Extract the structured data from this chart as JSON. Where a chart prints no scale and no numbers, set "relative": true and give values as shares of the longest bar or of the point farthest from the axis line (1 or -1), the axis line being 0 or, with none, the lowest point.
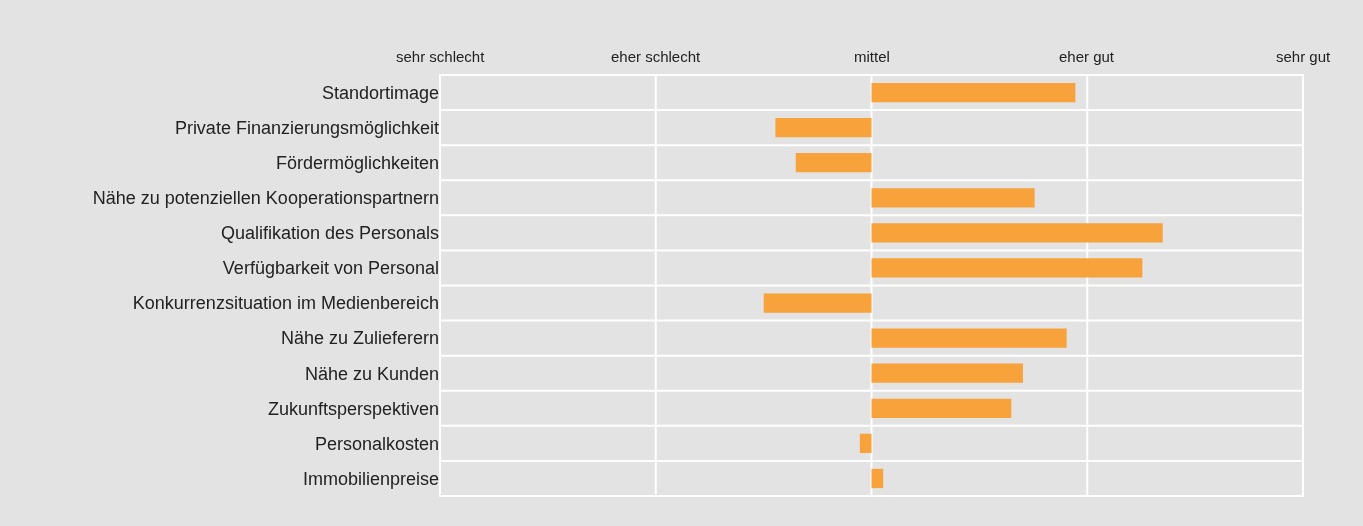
{
  "chart_data": {
    "type": "bar",
    "orientation": "horizontal",
    "relative": true,
    "categories": [
      "Standortimage",
      "Private Finanzierungsmöglichkeit",
      "Fördermöglichkeiten",
      "Nähe zu potenziellen Kooperationspartnern",
      "Qualifikation des Personals",
      "Verfügbarkeit von Personal",
      "Konkurrenzsituation im Medienbereich",
      "Nähe zu Zulieferern",
      "Nähe zu Kunden",
      "Zukunftsperspektiven",
      "Personalkosten",
      "Immobilienpreise"
    ],
    "values": [
      0.7,
      -0.33,
      -0.26,
      0.56,
      1,
      0.93,
      -0.37,
      0.67,
      0.52,
      0.48,
      -0.04,
      0.04
    ],
    "color": "#f7a23b",
    "annotations": [
      "sehr schlecht",
      "eher schlecht",
      "mittel",
      "eher gut",
      "sehr gut"
    ],
    "grid": true
  }
}
